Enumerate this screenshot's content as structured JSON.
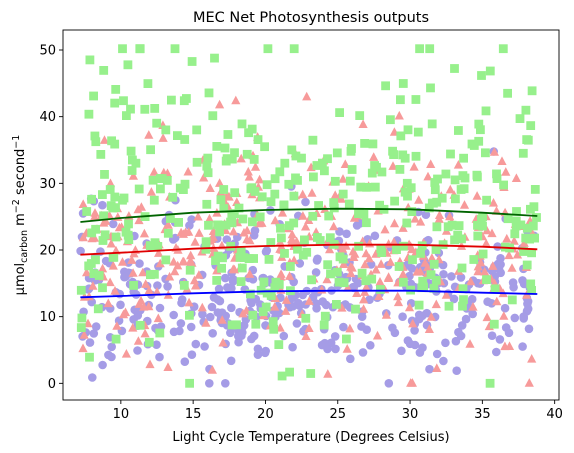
{
  "chart_data": {
    "type": "scatter",
    "title": "MEC Net Photosynthesis outputs",
    "xlabel": "Light Cycle Temperature (Degrees Celsius)",
    "ylabel": {
      "prefix": "µmol",
      "subscript": "carbon",
      "middle": " m",
      "superscript1": "−2",
      "suffix": " second",
      "superscript2": "−1"
    },
    "xlim": [
      6.0,
      40.3
    ],
    "ylim": [
      -2.5,
      53.0
    ],
    "xticks": [
      10,
      15,
      20,
      25,
      30,
      35,
      40
    ],
    "yticks": [
      0,
      10,
      20,
      30,
      40,
      50
    ],
    "grid": false,
    "legend": "none",
    "scatter_series": [
      {
        "marker": "circle",
        "color": "#a59ce6",
        "x_range": [
          7.2,
          38.8
        ],
        "y_center": 13.5,
        "y_spread": 6.0,
        "y_min": 0.0,
        "y_max": 37.0,
        "count": 400
      },
      {
        "marker": "triangle",
        "color": "#f79a9a",
        "x_range": [
          7.2,
          38.8
        ],
        "y_center": 20.5,
        "y_spread": 8.0,
        "y_min": 0.0,
        "y_max": 44.0,
        "count": 400
      },
      {
        "marker": "square",
        "color": "#97f08c",
        "x_range": [
          7.2,
          38.8
        ],
        "y_center": 26.0,
        "y_spread": 11.0,
        "y_min": 0.0,
        "y_max": 50.2,
        "count": 400
      }
    ],
    "trend_lines": [
      {
        "color": "#0000ff",
        "x": [
          7.2,
          10,
          15,
          20,
          25,
          30,
          35,
          38.8
        ],
        "y": [
          12.9,
          13.1,
          13.5,
          13.8,
          13.9,
          13.9,
          13.6,
          13.4
        ]
      },
      {
        "color": "#e00000",
        "x": [
          7.2,
          10,
          15,
          20,
          25,
          30,
          35,
          38.8
        ],
        "y": [
          19.3,
          19.6,
          20.2,
          20.6,
          20.8,
          20.8,
          20.5,
          20.1
        ]
      },
      {
        "color": "#006400",
        "x": [
          7.2,
          10,
          15,
          20,
          25,
          30,
          35,
          38.8
        ],
        "y": [
          24.2,
          24.8,
          25.6,
          26.0,
          26.2,
          26.1,
          25.6,
          25.1
        ]
      }
    ]
  }
}
